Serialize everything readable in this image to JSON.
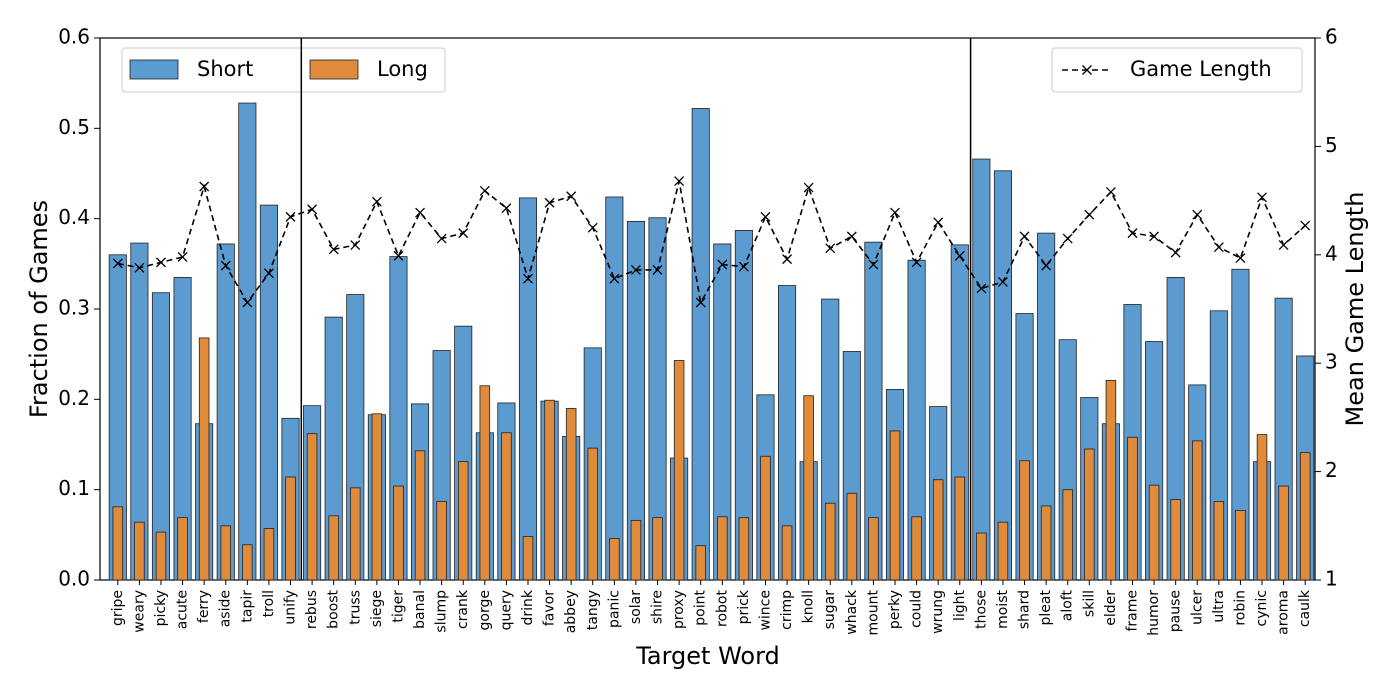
{
  "chart_data": {
    "type": "bar",
    "xlabel": "Target Word",
    "ylabel": "Fraction of Games",
    "y2label": "Mean Game Length",
    "categories": [
      "gripe",
      "weary",
      "picky",
      "acute",
      "ferry",
      "aside",
      "tapir",
      "troll",
      "unify",
      "rebus",
      "boost",
      "truss",
      "siege",
      "tiger",
      "banal",
      "slump",
      "crank",
      "gorge",
      "query",
      "drink",
      "favor",
      "abbey",
      "tangy",
      "panic",
      "solar",
      "shire",
      "proxy",
      "point",
      "robot",
      "prick",
      "wince",
      "crimp",
      "knoll",
      "sugar",
      "whack",
      "mount",
      "perky",
      "could",
      "wrung",
      "light",
      "those",
      "moist",
      "shard",
      "pleat",
      "aloft",
      "skill",
      "elder",
      "frame",
      "humor",
      "pause",
      "ulcer",
      "ultra",
      "robin",
      "cynic",
      "aroma",
      "caulk"
    ],
    "series": [
      {
        "name": "Short",
        "color": "#5b9bd0",
        "values": [
          0.36,
          0.373,
          0.318,
          0.335,
          0.173,
          0.372,
          0.528,
          0.415,
          0.179,
          0.193,
          0.291,
          0.316,
          0.183,
          0.358,
          0.195,
          0.254,
          0.281,
          0.163,
          0.196,
          0.423,
          0.198,
          0.159,
          0.257,
          0.424,
          0.397,
          0.401,
          0.135,
          0.522,
          0.372,
          0.387,
          0.205,
          0.326,
          0.131,
          0.311,
          0.253,
          0.374,
          0.211,
          0.354,
          0.192,
          0.371,
          0.466,
          0.453,
          0.295,
          0.384,
          0.266,
          0.202,
          0.173,
          0.305,
          0.264,
          0.335,
          0.216,
          0.298,
          0.344,
          0.131,
          0.312,
          0.248
        ]
      },
      {
        "name": "Long",
        "color": "#e08a3c",
        "values": [
          0.081,
          0.064,
          0.053,
          0.069,
          0.268,
          0.06,
          0.039,
          0.057,
          0.114,
          0.162,
          0.071,
          0.102,
          0.184,
          0.104,
          0.143,
          0.087,
          0.131,
          0.215,
          0.163,
          0.048,
          0.199,
          0.19,
          0.146,
          0.046,
          0.066,
          0.069,
          0.243,
          0.038,
          0.07,
          0.069,
          0.137,
          0.06,
          0.204,
          0.085,
          0.096,
          0.069,
          0.165,
          0.07,
          0.111,
          0.114,
          0.052,
          0.064,
          0.132,
          0.082,
          0.1,
          0.145,
          0.221,
          0.158,
          0.105,
          0.089,
          0.154,
          0.087,
          0.077,
          0.161,
          0.104,
          0.141
        ]
      },
      {
        "name": "Game Length",
        "type": "line",
        "axis": "y2",
        "color": "#000000",
        "values": [
          3.92,
          3.88,
          3.93,
          3.98,
          4.63,
          3.9,
          3.56,
          3.83,
          4.35,
          4.42,
          4.05,
          4.09,
          4.49,
          3.99,
          4.39,
          4.15,
          4.2,
          4.59,
          4.43,
          3.78,
          4.48,
          4.54,
          4.25,
          3.78,
          3.86,
          3.86,
          4.68,
          3.56,
          3.91,
          3.89,
          4.35,
          3.96,
          4.62,
          4.06,
          4.17,
          3.91,
          4.39,
          3.93,
          4.3,
          3.99,
          3.69,
          3.75,
          4.17,
          3.9,
          4.15,
          4.37,
          4.58,
          4.2,
          4.17,
          4.02,
          4.37,
          4.07,
          3.97,
          4.53,
          4.09,
          4.27
        ]
      }
    ],
    "ylim": [
      0,
      0.6
    ],
    "yticks": [
      {
        "value": 0,
        "label": "0.0"
      },
      0.1,
      0.2,
      0.3,
      0.4,
      0.5,
      0.6
    ],
    "y2lim": [
      1,
      6
    ],
    "y2ticks": [
      1,
      2,
      3,
      4,
      5,
      6
    ]
  }
}
